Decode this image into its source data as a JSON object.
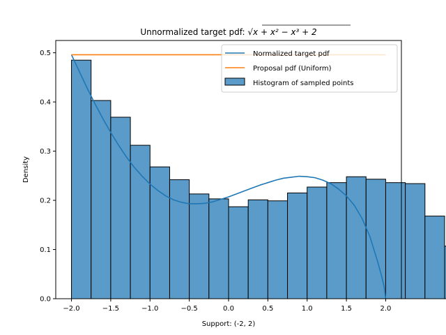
{
  "chart_data": {
    "type": "bar",
    "title_prefix": "Unnormalized target pdf: ",
    "title_expr": "x + x² − x³ + 2",
    "xlabel": "Support: (-2, 2)",
    "ylabel": "Density",
    "xlim": [
      -2.2,
      2.2
    ],
    "ylim": [
      0,
      0.525
    ],
    "xticks": [
      -2.0,
      -1.5,
      -1.0,
      -0.5,
      0.0,
      0.5,
      1.0,
      1.5,
      2.0
    ],
    "xtick_labels": [
      "−2.0",
      "−1.5",
      "−1.0",
      "−0.5",
      "0.0",
      "0.5",
      "1.0",
      "1.5",
      "2.0"
    ],
    "yticks": [
      0.0,
      0.1,
      0.2,
      0.3,
      0.4,
      0.5
    ],
    "ytick_labels": [
      "0.0",
      "0.1",
      "0.2",
      "0.3",
      "0.4",
      "0.5"
    ],
    "grid": false,
    "legend_position": "top-right",
    "histogram": {
      "name": "Histogram of sampled points",
      "color": "#5b9bc9",
      "edge_color": "#000000",
      "bin_start": -2.0,
      "bin_width": 0.25,
      "values": [
        0.485,
        0.403,
        0.369,
        0.312,
        0.268,
        0.242,
        0.213,
        0.203,
        0.187,
        0.201,
        0.199,
        0.215,
        0.227,
        0.236,
        0.248,
        0.243,
        0.236,
        0.234,
        0.168,
        0.107
      ]
    },
    "series": [
      {
        "name": "Normalized target pdf",
        "color": "#1f77b4",
        "x": [
          -2.0,
          -1.9,
          -1.8,
          -1.7,
          -1.6,
          -1.5,
          -1.4,
          -1.3,
          -1.2,
          -1.1,
          -1.0,
          -0.9,
          -0.8,
          -0.7,
          -0.6,
          -0.5,
          -0.4,
          -0.3,
          -0.2,
          -0.1,
          0.0,
          0.1,
          0.2,
          0.3,
          0.4,
          0.5,
          0.6,
          0.7,
          0.8,
          0.9,
          1.0,
          1.1,
          1.2,
          1.3,
          1.4,
          1.5,
          1.6,
          1.7,
          1.8,
          1.9,
          1.95,
          1.98,
          2.0
        ],
        "y": [
          0.496,
          0.462,
          0.428,
          0.396,
          0.366,
          0.338,
          0.312,
          0.288,
          0.267,
          0.249,
          0.233,
          0.22,
          0.209,
          0.201,
          0.196,
          0.193,
          0.193,
          0.194,
          0.197,
          0.202,
          0.207,
          0.213,
          0.219,
          0.225,
          0.231,
          0.236,
          0.241,
          0.245,
          0.247,
          0.249,
          0.248,
          0.246,
          0.241,
          0.234,
          0.223,
          0.209,
          0.19,
          0.163,
          0.126,
          0.074,
          0.045,
          0.025,
          0.0
        ]
      },
      {
        "name": "Proposal pdf (Uniform)",
        "color": "#ff7f0e",
        "x": [
          -2.0,
          2.0
        ],
        "y": [
          0.496,
          0.496
        ]
      }
    ]
  }
}
